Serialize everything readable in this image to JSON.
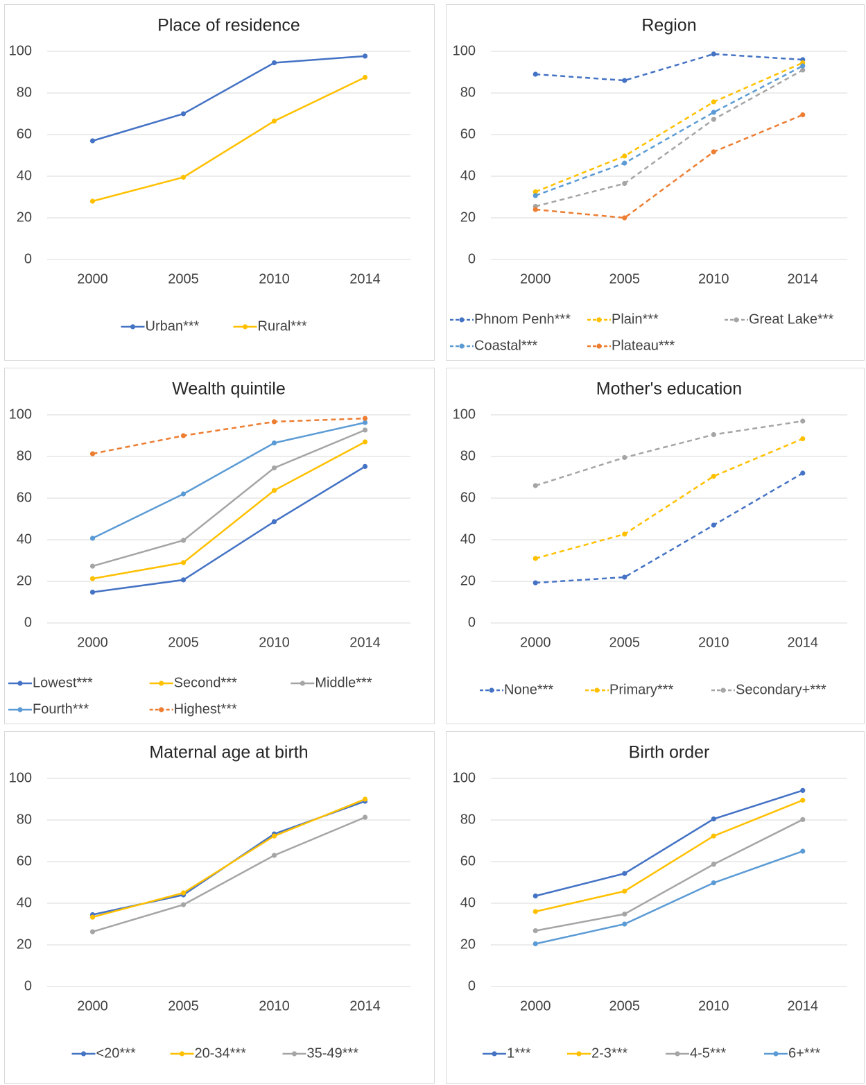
{
  "chart_data": [
    {
      "type": "line",
      "title": "Place of residence",
      "categories": [
        "2000",
        "2005",
        "2010",
        "2014"
      ],
      "ylim": [
        0,
        100
      ],
      "yticks": [
        0,
        20,
        40,
        60,
        80,
        100
      ],
      "grid": true,
      "legend": "bottom",
      "line_style": "solid",
      "series": [
        {
          "name": "Urban***",
          "color": "#4472c4",
          "values": [
            57,
            70,
            94.5,
            97.7
          ]
        },
        {
          "name": "Rural***",
          "color": "#ffc000",
          "values": [
            28,
            39.5,
            66.5,
            87.5
          ]
        }
      ]
    },
    {
      "type": "line",
      "title": "Region",
      "categories": [
        "2000",
        "2005",
        "2010",
        "2014"
      ],
      "ylim": [
        0,
        100
      ],
      "yticks": [
        0,
        20,
        40,
        60,
        80,
        100
      ],
      "grid": true,
      "legend": "bottom",
      "line_style": "dashed",
      "series": [
        {
          "name": "Phnom Penh***",
          "color": "#4472c4",
          "values": [
            89,
            86,
            98.7,
            96
          ]
        },
        {
          "name": "Plain***",
          "color": "#ffc000",
          "values": [
            32.5,
            49.7,
            75.7,
            94.5
          ]
        },
        {
          "name": "Great Lake***",
          "color": "#a5a5a5",
          "values": [
            25.5,
            36.5,
            67.3,
            91
          ]
        },
        {
          "name": "Coastal***",
          "color": "#5b9bd5",
          "values": [
            30.7,
            46.3,
            70.7,
            93
          ]
        },
        {
          "name": "Plateau***",
          "color": "#ed7d31",
          "values": [
            24,
            20,
            51.7,
            69.5
          ]
        }
      ]
    },
    {
      "type": "line",
      "title": "Wealth quintile",
      "categories": [
        "2000",
        "2005",
        "2010",
        "2014"
      ],
      "ylim": [
        0,
        100
      ],
      "yticks": [
        0,
        20,
        40,
        60,
        80,
        100
      ],
      "grid": true,
      "legend": "bottom",
      "line_style": "solid",
      "series": [
        {
          "name": "Lowest***",
          "color": "#4472c4",
          "values": [
            14.8,
            20.7,
            48.7,
            75.2
          ]
        },
        {
          "name": "Second***",
          "color": "#ffc000",
          "values": [
            21.3,
            29,
            63.7,
            87
          ]
        },
        {
          "name": "Middle***",
          "color": "#a5a5a5",
          "values": [
            27.3,
            39.7,
            74.5,
            92.7
          ]
        },
        {
          "name": "Fourth***",
          "color": "#5b9bd5",
          "values": [
            40.7,
            62,
            86.5,
            96.3
          ]
        },
        {
          "name": "Highest***",
          "color": "#ed7d31",
          "line_style": "dashed",
          "values": [
            81.3,
            90,
            96.7,
            98.3
          ]
        }
      ]
    },
    {
      "type": "line",
      "title": "Mother's education",
      "categories": [
        "2000",
        "2005",
        "2010",
        "2014"
      ],
      "ylim": [
        0,
        100
      ],
      "yticks": [
        0,
        20,
        40,
        60,
        80,
        100
      ],
      "grid": true,
      "legend": "bottom",
      "line_style": "dashed",
      "series": [
        {
          "name": "None***",
          "color": "#4472c4",
          "values": [
            19.3,
            22,
            47,
            72
          ]
        },
        {
          "name": "Primary***",
          "color": "#ffc000",
          "values": [
            31,
            42.7,
            70.5,
            88.5
          ]
        },
        {
          "name": "Secondary+***",
          "color": "#a5a5a5",
          "values": [
            66,
            79.5,
            90.5,
            97
          ]
        }
      ]
    },
    {
      "type": "line",
      "title": "Maternal age at birth",
      "categories": [
        "2000",
        "2005",
        "2010",
        "2014"
      ],
      "ylim": [
        0,
        100
      ],
      "yticks": [
        0,
        20,
        40,
        60,
        80,
        100
      ],
      "grid": true,
      "legend": "bottom",
      "line_style": "solid",
      "series": [
        {
          "name": "<20***",
          "color": "#4472c4",
          "values": [
            34.5,
            44,
            73.3,
            89
          ]
        },
        {
          "name": "20-34***",
          "color": "#ffc000",
          "values": [
            33.3,
            45,
            72.3,
            90
          ]
        },
        {
          "name": "35-49***",
          "color": "#a5a5a5",
          "values": [
            26.3,
            39.3,
            63,
            81.3
          ]
        }
      ]
    },
    {
      "type": "line",
      "title": "Birth order",
      "categories": [
        "2000",
        "2005",
        "2010",
        "2014"
      ],
      "ylim": [
        0,
        100
      ],
      "yticks": [
        0,
        20,
        40,
        60,
        80,
        100
      ],
      "grid": true,
      "legend": "bottom",
      "line_style": "solid",
      "series": [
        {
          "name": "1***",
          "color": "#4472c4",
          "values": [
            43.5,
            54.3,
            80.5,
            94.2
          ]
        },
        {
          "name": "2-3***",
          "color": "#ffc000",
          "values": [
            36,
            45.8,
            72.3,
            89.5
          ]
        },
        {
          "name": "4-5***",
          "color": "#a5a5a5",
          "values": [
            26.8,
            34.8,
            58.7,
            80.2
          ]
        },
        {
          "name": "6+***",
          "color": "#5b9bd5",
          "values": [
            20.5,
            30,
            49.8,
            65
          ]
        }
      ]
    }
  ]
}
